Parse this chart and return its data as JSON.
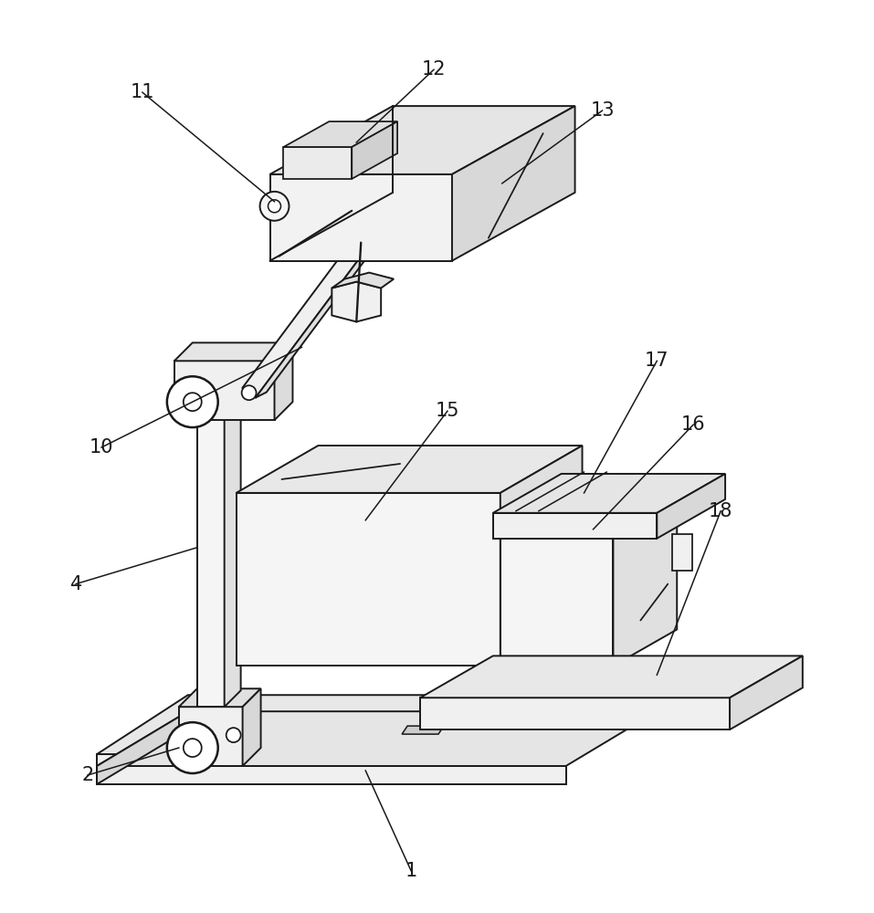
{
  "background_color": "#ffffff",
  "line_color": "#1a1a1a",
  "line_width": 1.4,
  "label_color": "#1a1a1a",
  "label_fontsize": 15,
  "fig_width": 9.57,
  "fig_height": 10.0
}
